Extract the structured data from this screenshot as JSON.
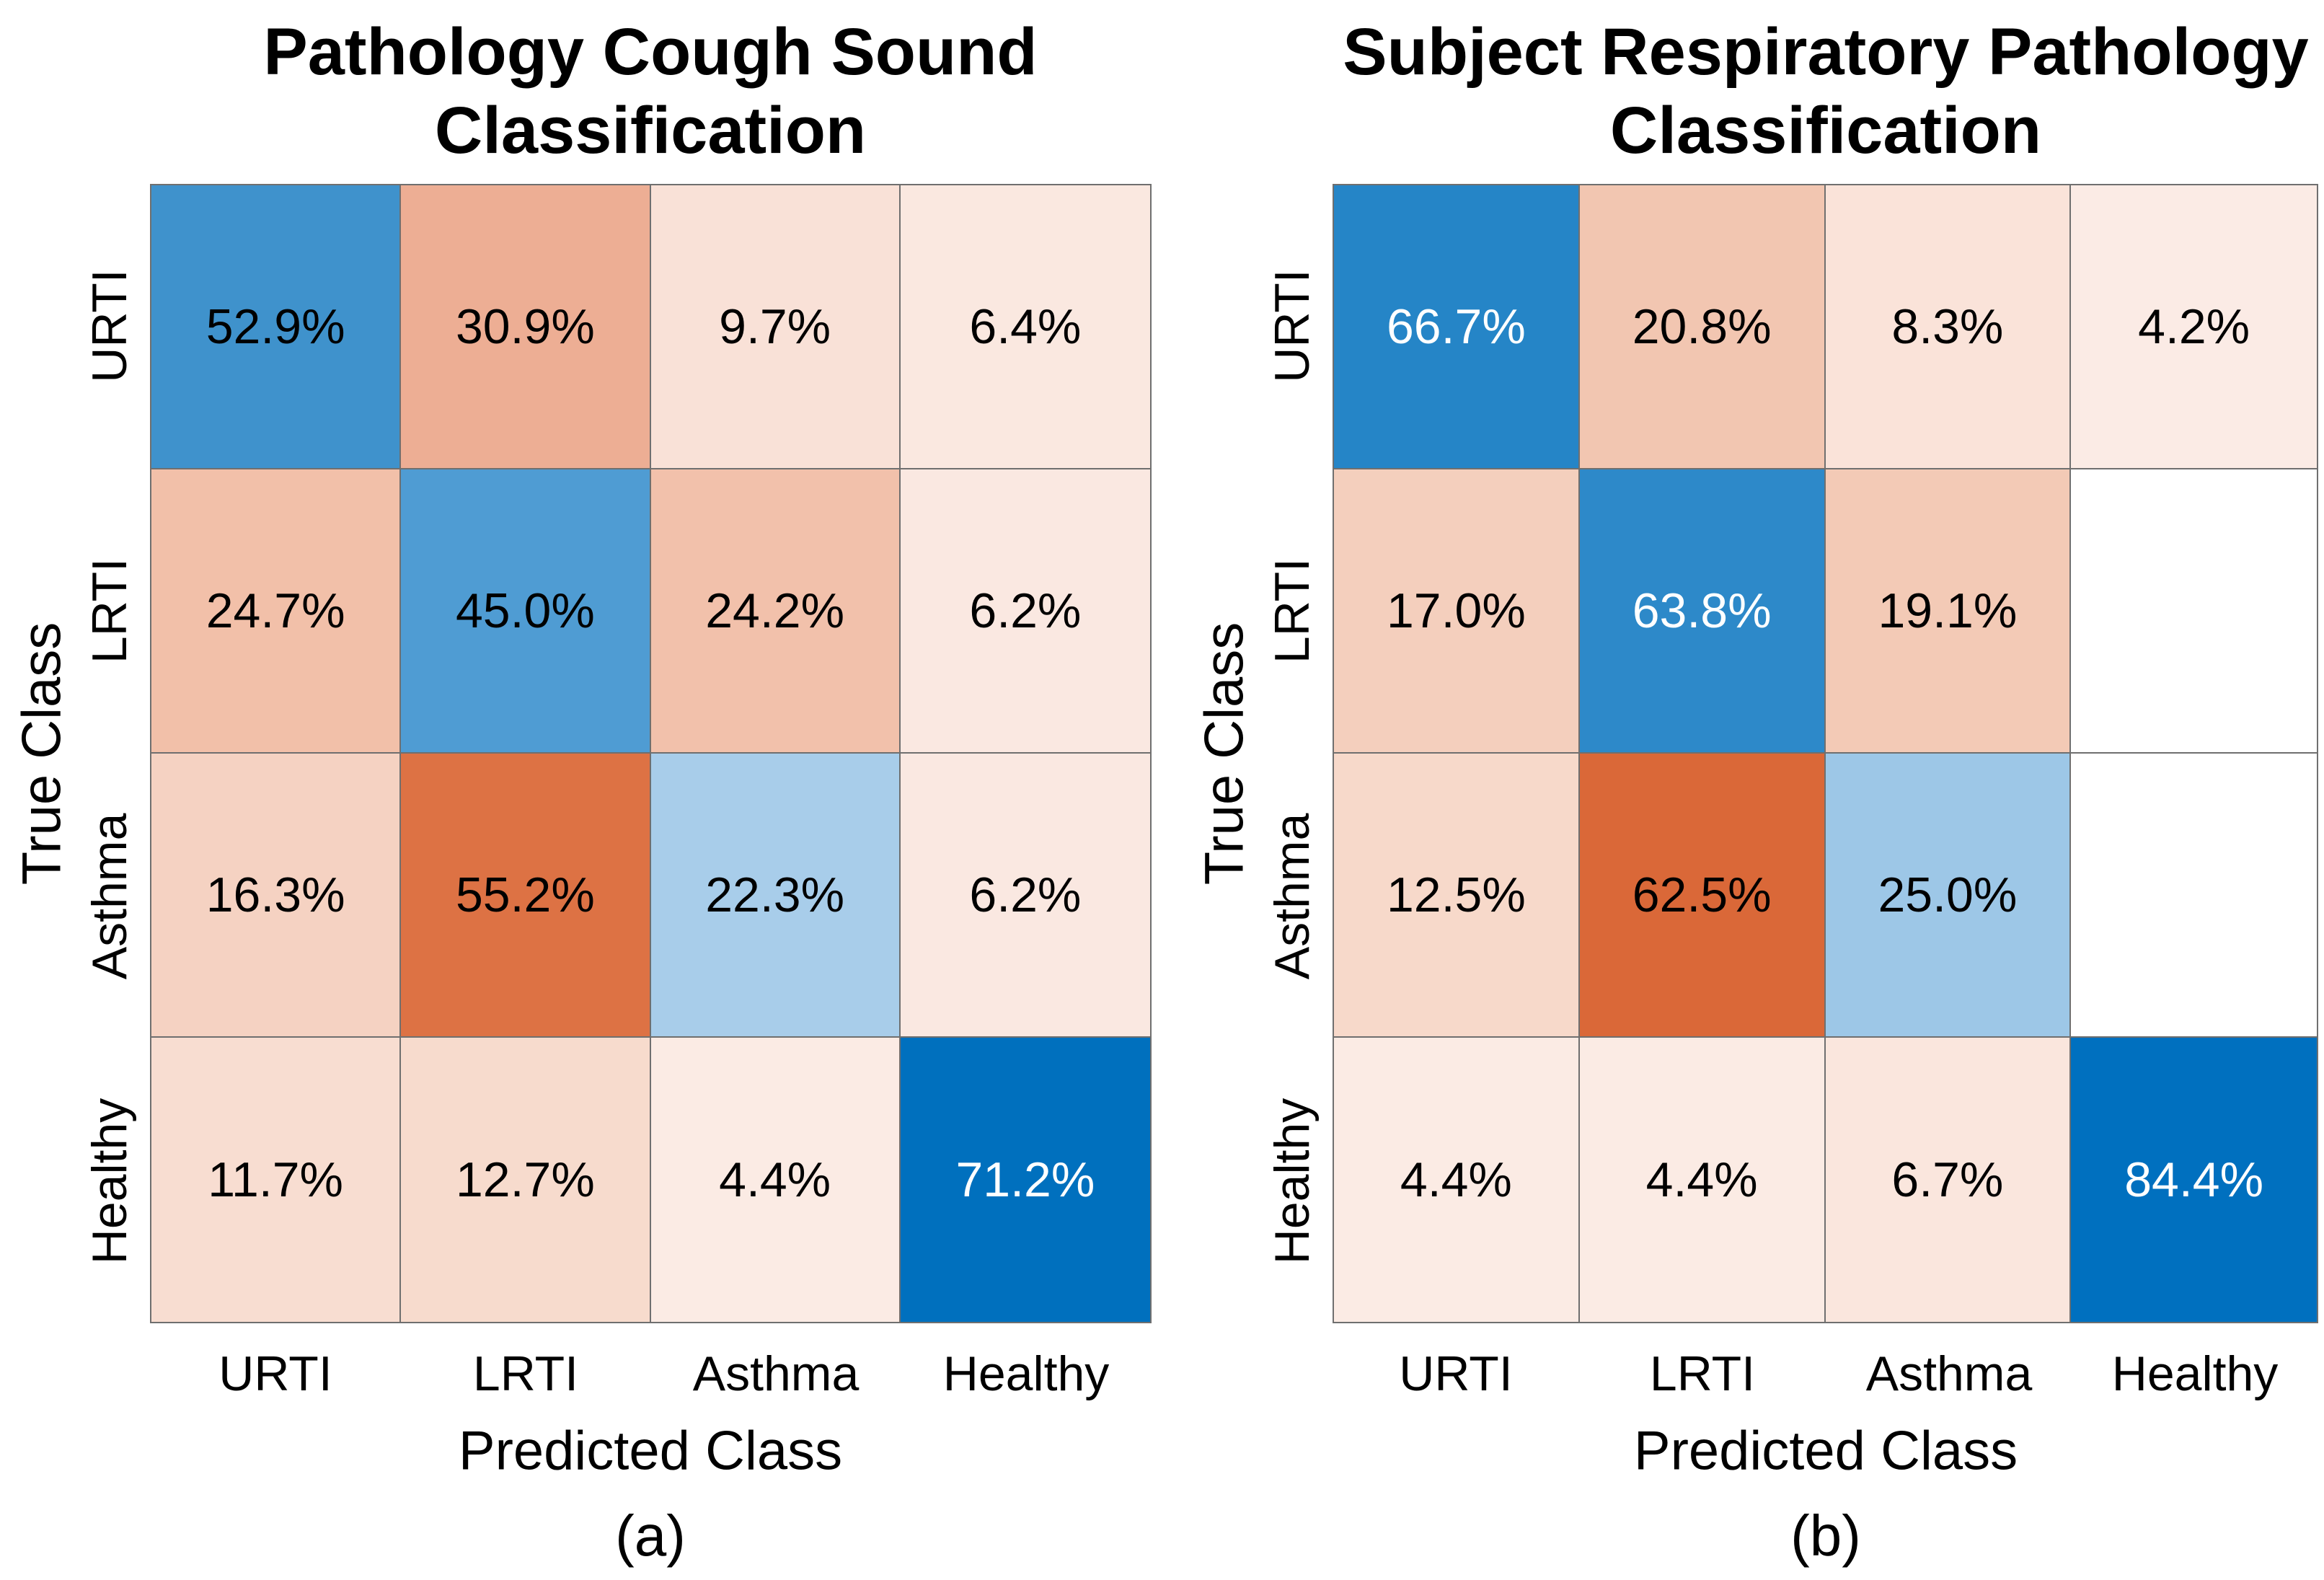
{
  "figure": {
    "background": "#ffffff",
    "grid_line_color": "#6f6f6f",
    "diagonal_color_strong": "#0070be",
    "diagonal_color_medium": "#4193ce",
    "diagonal_color_light": "#a8cdea",
    "offdiagonal_color_strong": "#dd7244",
    "offdiagonal_color_light": "#fbebe4"
  },
  "chart_data": [
    {
      "type": "heatmap",
      "title": "Pathology Cough Sound Classification",
      "title_lines": [
        "Pathology Cough Sound",
        "Classification"
      ],
      "xlabel": "Predicted Class",
      "ylabel": "True Class",
      "caption": "(a)",
      "x_categories": [
        "URTI",
        "LRTI",
        "Asthma",
        "Healthy"
      ],
      "y_categories": [
        "URTI",
        "LRTI",
        "Asthma",
        "Healthy"
      ],
      "values": [
        [
          52.9,
          30.9,
          9.7,
          6.4
        ],
        [
          24.7,
          45.0,
          24.2,
          6.2
        ],
        [
          16.3,
          55.2,
          22.3,
          6.2
        ],
        [
          11.7,
          12.7,
          4.4,
          71.2
        ]
      ],
      "labels": [
        [
          "52.9%",
          "30.9%",
          "9.7%",
          "6.4%"
        ],
        [
          "24.7%",
          "45.0%",
          "24.2%",
          "6.2%"
        ],
        [
          "16.3%",
          "55.2%",
          "22.3%",
          "6.2%"
        ],
        [
          "11.7%",
          "12.7%",
          "4.4%",
          "71.2%"
        ]
      ],
      "cell_colors": [
        [
          "#3f92cc",
          "#edae94",
          "#f9e1d7",
          "#fae8e0"
        ],
        [
          "#f2c0a9",
          "#4f9cd3",
          "#f2c1ab",
          "#fae8e1"
        ],
        [
          "#f5d2c2",
          "#dd7244",
          "#a8cdea",
          "#fae8e1"
        ],
        [
          "#f8ddd1",
          "#f7dbcd",
          "#fbebe4",
          "#0070be"
        ]
      ],
      "cell_text_colors": [
        [
          "#000000",
          "#000000",
          "#000000",
          "#000000"
        ],
        [
          "#000000",
          "#000000",
          "#000000",
          "#000000"
        ],
        [
          "#000000",
          "#000000",
          "#000000",
          "#000000"
        ],
        [
          "#000000",
          "#000000",
          "#000000",
          "#ffffff"
        ]
      ]
    },
    {
      "type": "heatmap",
      "title": "Subject Respiratory Pathology Classification",
      "title_lines": [
        "Subject Respiratory Pathology",
        "Classification"
      ],
      "xlabel": "Predicted Class",
      "ylabel": "True Class",
      "caption": "(b)",
      "x_categories": [
        "URTI",
        "LRTI",
        "Asthma",
        "Healthy"
      ],
      "y_categories": [
        "URTI",
        "LRTI",
        "Asthma",
        "Healthy"
      ],
      "values": [
        [
          66.7,
          20.8,
          8.3,
          4.2
        ],
        [
          17.0,
          63.8,
          19.1,
          null
        ],
        [
          12.5,
          62.5,
          25.0,
          null
        ],
        [
          4.4,
          4.4,
          6.7,
          84.4
        ]
      ],
      "labels": [
        [
          "66.7%",
          "20.8%",
          "8.3%",
          "4.2%"
        ],
        [
          "17.0%",
          "63.8%",
          "19.1%",
          ""
        ],
        [
          "12.5%",
          "62.5%",
          "25.0%",
          ""
        ],
        [
          "4.4%",
          "4.4%",
          "6.7%",
          "84.4%"
        ]
      ],
      "cell_colors": [
        [
          "#2585c7",
          "#f2c6b1",
          "#fae3d9",
          "#fbebe5"
        ],
        [
          "#f4cfbd",
          "#2d89c9",
          "#f3cab6",
          "#ffffff"
        ],
        [
          "#f7d9ca",
          "#da6838",
          "#9dc7e7",
          "#ffffff"
        ],
        [
          "#fbebe4",
          "#fbebe4",
          "#fae6dd",
          "#0070bf"
        ]
      ],
      "cell_text_colors": [
        [
          "#ffffff",
          "#000000",
          "#000000",
          "#000000"
        ],
        [
          "#000000",
          "#ffffff",
          "#000000",
          "#000000"
        ],
        [
          "#000000",
          "#000000",
          "#000000",
          "#000000"
        ],
        [
          "#000000",
          "#000000",
          "#000000",
          "#ffffff"
        ]
      ]
    }
  ]
}
